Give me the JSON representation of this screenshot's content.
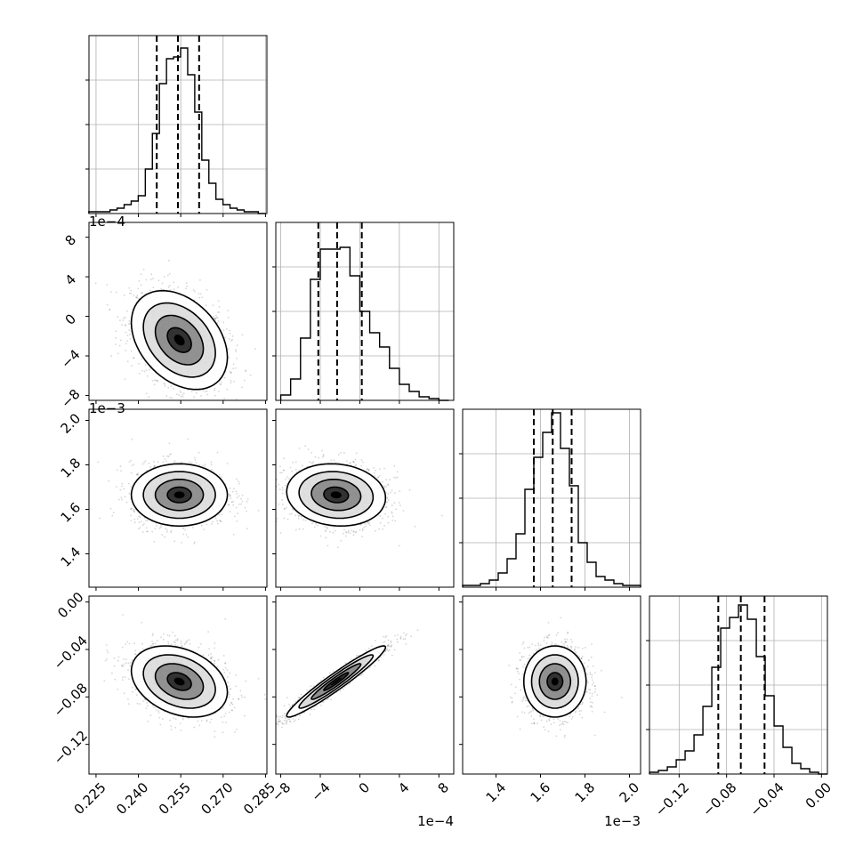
{
  "chart_data": {
    "type": "corner",
    "grid": true,
    "parameters": [
      {
        "range": [
          0.2225,
          0.2855
        ],
        "ticks": [
          0.225,
          0.24,
          0.255,
          0.27,
          0.285
        ],
        "tick_labels": [
          "0.225",
          "0.240",
          "0.255",
          "0.270",
          "0.285"
        ],
        "offset_label": "",
        "quantiles": [
          0.2465,
          0.254,
          0.2615
        ],
        "hist_centers": [
          0.2237,
          0.2262,
          0.2287,
          0.2312,
          0.2337,
          0.2362,
          0.2387,
          0.2412,
          0.2437,
          0.2462,
          0.2487,
          0.2512,
          0.2537,
          0.2562,
          0.2587,
          0.2612,
          0.2637,
          0.2662,
          0.2687,
          0.2712,
          0.2737,
          0.2762,
          0.2787,
          0.2812,
          0.2837
        ],
        "hist_values": [
          0.01,
          0.01,
          0.01,
          0.02,
          0.03,
          0.05,
          0.07,
          0.1,
          0.25,
          0.45,
          0.73,
          0.87,
          0.88,
          0.93,
          0.78,
          0.57,
          0.3,
          0.17,
          0.08,
          0.05,
          0.03,
          0.02,
          0.01,
          0.01,
          0.0
        ]
      },
      {
        "range": [
          -8.5,
          9.5
        ],
        "ticks": [
          -8,
          -4,
          0,
          4,
          8
        ],
        "tick_labels": [
          "−8",
          "−4",
          "0",
          "4",
          "8"
        ],
        "offset_label": "1e−4",
        "quantiles": [
          -4.2,
          -2.3,
          0.2
        ],
        "hist_centers": [
          -7.5,
          -6.5,
          -5.5,
          -4.5,
          -3.5,
          -2.5,
          -1.5,
          -0.5,
          0.5,
          1.5,
          2.5,
          3.5,
          4.5,
          5.5,
          6.5,
          7.5,
          8.5
        ],
        "hist_values": [
          0.03,
          0.12,
          0.35,
          0.68,
          0.85,
          0.85,
          0.86,
          0.7,
          0.5,
          0.38,
          0.3,
          0.18,
          0.09,
          0.05,
          0.02,
          0.01,
          0.0
        ]
      },
      {
        "range": [
          1.25,
          2.05
        ],
        "ticks": [
          1.4,
          1.6,
          1.8,
          2.0
        ],
        "tick_labels": [
          "1.4",
          "1.6",
          "1.8",
          "2.0"
        ],
        "offset_label": "1e−3",
        "quantiles": [
          1.57,
          1.655,
          1.74
        ],
        "hist_centers": [
          1.27,
          1.31,
          1.35,
          1.39,
          1.43,
          1.47,
          1.51,
          1.55,
          1.59,
          1.63,
          1.67,
          1.71,
          1.75,
          1.79,
          1.83,
          1.87,
          1.91,
          1.95,
          1.99,
          2.03
        ],
        "hist_values": [
          0.01,
          0.01,
          0.02,
          0.04,
          0.08,
          0.16,
          0.3,
          0.55,
          0.73,
          0.87,
          0.98,
          0.78,
          0.57,
          0.25,
          0.14,
          0.06,
          0.04,
          0.02,
          0.01,
          0.01
        ]
      },
      {
        "range": [
          -0.145,
          0.005
        ],
        "ticks": [
          -0.12,
          -0.08,
          -0.04,
          0.0
        ],
        "tick_labels": [
          "−0.12",
          "−0.08",
          "−0.04",
          "0.00"
        ],
        "offset_label": "",
        "quantiles": [
          -0.087,
          -0.068,
          -0.048
        ],
        "hist_centers": [
          -0.1412,
          -0.1337,
          -0.1262,
          -0.1187,
          -0.1112,
          -0.1037,
          -0.0962,
          -0.0887,
          -0.0812,
          -0.0737,
          -0.0662,
          -0.0587,
          -0.0512,
          -0.0437,
          -0.0362,
          -0.0287,
          -0.0212,
          -0.0137,
          -0.0062,
          0.0012
        ],
        "hist_values": [
          0.01,
          0.02,
          0.04,
          0.08,
          0.13,
          0.22,
          0.38,
          0.6,
          0.82,
          0.88,
          0.95,
          0.87,
          0.66,
          0.44,
          0.27,
          0.15,
          0.06,
          0.03,
          0.01,
          0.0
        ]
      }
    ],
    "pair_distributions": [
      {
        "x": 0,
        "y": 1,
        "mean": [
          0.2545,
          -2.4
        ],
        "sd": [
          0.0085,
          2.5
        ],
        "corr": -0.35
      },
      {
        "x": 0,
        "y": 2,
        "mean": [
          0.2545,
          1.665
        ],
        "sd": [
          0.0085,
          0.07
        ],
        "corr": 0.0
      },
      {
        "x": 1,
        "y": 2,
        "mean": [
          -2.4,
          1.665
        ],
        "sd": [
          2.5,
          0.07
        ],
        "corr": -0.1
      },
      {
        "x": 0,
        "y": 3,
        "mean": [
          0.2545,
          -0.067
        ],
        "sd": [
          0.0085,
          0.015
        ],
        "corr": -0.3
      },
      {
        "x": 1,
        "y": 3,
        "mean": [
          -2.4,
          -0.067
        ],
        "sd": [
          2.5,
          0.015
        ],
        "corr": 0.96
      },
      {
        "x": 2,
        "y": 3,
        "mean": [
          1.665,
          -0.067
        ],
        "sd": [
          0.07,
          0.015
        ],
        "corr": 0.0
      }
    ],
    "contour_levels_sigma": [
      0.5,
      1.0,
      1.5,
      2.0
    ],
    "colors": {
      "line": "#000000",
      "grid": "#b0b0b0",
      "points": "#444444",
      "fill": "#000000"
    }
  }
}
